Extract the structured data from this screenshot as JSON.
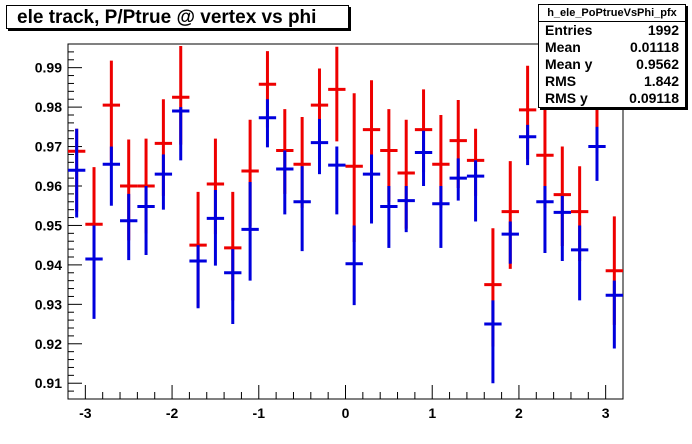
{
  "title": "ele track, P/Ptrue @ vertex vs phi",
  "stats": {
    "name": "h_ele_PoPtrueVsPhi_pfx",
    "rows": [
      {
        "label": "Entries",
        "value": "1992"
      },
      {
        "label": "Mean",
        "value": "0.01118"
      },
      {
        "label": "Mean y",
        "value": "0.9562"
      },
      {
        "label": "RMS",
        "value": "1.842"
      },
      {
        "label": "RMS y",
        "value": "0.09118"
      }
    ]
  },
  "colors": {
    "red": "#ee0000",
    "blue": "#0000dd"
  },
  "chart_data": {
    "type": "scatter",
    "title": "ele track, P/Ptrue @ vertex vs phi",
    "xlim": [
      -3.2,
      3.2
    ],
    "ylim": [
      0.906,
      0.996
    ],
    "xticks": [
      "-3",
      "-2",
      "-1",
      "0",
      "1",
      "2",
      "3"
    ],
    "yticks": [
      "0.91",
      "0.92",
      "0.93",
      "0.94",
      "0.95",
      "0.96",
      "0.97",
      "0.98",
      "0.99"
    ],
    "grid": false,
    "bin_half_width": 0.1,
    "series": [
      {
        "color": "red",
        "points": [
          {
            "x": -3.1,
            "y": 0.9688,
            "lo": 0.9535,
            "hi": 0.9745
          },
          {
            "x": -2.9,
            "y": 0.9503,
            "lo": 0.9318,
            "hi": 0.9648
          },
          {
            "x": -2.7,
            "y": 0.9805,
            "lo": 0.9665,
            "hi": 0.9918
          },
          {
            "x": -2.5,
            "y": 0.96,
            "lo": 0.9462,
            "hi": 0.9718
          },
          {
            "x": -2.3,
            "y": 0.96,
            "lo": 0.948,
            "hi": 0.972
          },
          {
            "x": -2.1,
            "y": 0.9708,
            "lo": 0.9575,
            "hi": 0.982
          },
          {
            "x": -1.9,
            "y": 0.9825,
            "lo": 0.9705,
            "hi": 0.9955
          },
          {
            "x": -1.7,
            "y": 0.945,
            "lo": 0.9293,
            "hi": 0.9585
          },
          {
            "x": -1.5,
            "y": 0.9605,
            "lo": 0.9478,
            "hi": 0.972
          },
          {
            "x": -1.3,
            "y": 0.9443,
            "lo": 0.931,
            "hi": 0.9585
          },
          {
            "x": -1.1,
            "y": 0.9638,
            "lo": 0.9498,
            "hi": 0.9768
          },
          {
            "x": -0.9,
            "y": 0.9858,
            "lo": 0.9748,
            "hi": 0.9942
          },
          {
            "x": -0.7,
            "y": 0.969,
            "lo": 0.958,
            "hi": 0.9795
          },
          {
            "x": -0.5,
            "y": 0.9655,
            "lo": 0.9545,
            "hi": 0.9775
          },
          {
            "x": -0.3,
            "y": 0.9805,
            "lo": 0.9668,
            "hi": 0.9898
          },
          {
            "x": -0.1,
            "y": 0.9845,
            "lo": 0.9713,
            "hi": 0.9953
          },
          {
            "x": 0.1,
            "y": 0.965,
            "lo": 0.9458,
            "hi": 0.9835
          },
          {
            "x": 0.3,
            "y": 0.9743,
            "lo": 0.962,
            "hi": 0.9868
          },
          {
            "x": 0.5,
            "y": 0.969,
            "lo": 0.956,
            "hi": 0.9795
          },
          {
            "x": 0.7,
            "y": 0.9633,
            "lo": 0.9492,
            "hi": 0.9768
          },
          {
            "x": 0.9,
            "y": 0.9743,
            "lo": 0.9635,
            "hi": 0.9845
          },
          {
            "x": 1.1,
            "y": 0.9655,
            "lo": 0.9545,
            "hi": 0.978
          },
          {
            "x": 1.3,
            "y": 0.9715,
            "lo": 0.9595,
            "hi": 0.9818
          },
          {
            "x": 1.5,
            "y": 0.9665,
            "lo": 0.9575,
            "hi": 0.9745
          },
          {
            "x": 1.7,
            "y": 0.935,
            "lo": 0.9193,
            "hi": 0.9493
          },
          {
            "x": 1.9,
            "y": 0.9535,
            "lo": 0.939,
            "hi": 0.9663
          },
          {
            "x": 2.1,
            "y": 0.9793,
            "lo": 0.9668,
            "hi": 0.9905
          },
          {
            "x": 2.3,
            "y": 0.9678,
            "lo": 0.9545,
            "hi": 0.9805
          },
          {
            "x": 2.5,
            "y": 0.9578,
            "lo": 0.9448,
            "hi": 0.97
          },
          {
            "x": 2.7,
            "y": 0.9535,
            "lo": 0.941,
            "hi": 0.965
          },
          {
            "x": 2.9,
            "y": 0.9808,
            "lo": 0.9683,
            "hi": 0.9905
          },
          {
            "x": 3.1,
            "y": 0.9385,
            "lo": 0.9248,
            "hi": 0.9523
          }
        ]
      },
      {
        "color": "blue",
        "points": [
          {
            "x": -3.1,
            "y": 0.964,
            "lo": 0.952,
            "hi": 0.9745
          },
          {
            "x": -2.9,
            "y": 0.9415,
            "lo": 0.9263,
            "hi": 0.95
          },
          {
            "x": -2.7,
            "y": 0.9655,
            "lo": 0.955,
            "hi": 0.97
          },
          {
            "x": -2.5,
            "y": 0.9512,
            "lo": 0.9412,
            "hi": 0.958
          },
          {
            "x": -2.3,
            "y": 0.9548,
            "lo": 0.9425,
            "hi": 0.96
          },
          {
            "x": -2.1,
            "y": 0.963,
            "lo": 0.954,
            "hi": 0.968
          },
          {
            "x": -1.9,
            "y": 0.979,
            "lo": 0.9665,
            "hi": 0.98
          },
          {
            "x": -1.7,
            "y": 0.941,
            "lo": 0.929,
            "hi": 0.945
          },
          {
            "x": -1.5,
            "y": 0.9518,
            "lo": 0.9398,
            "hi": 0.959
          },
          {
            "x": -1.3,
            "y": 0.938,
            "lo": 0.925,
            "hi": 0.944
          },
          {
            "x": -1.1,
            "y": 0.949,
            "lo": 0.936,
            "hi": 0.961
          },
          {
            "x": -0.9,
            "y": 0.9773,
            "lo": 0.9698,
            "hi": 0.982
          },
          {
            "x": -0.7,
            "y": 0.9643,
            "lo": 0.9528,
            "hi": 0.969
          },
          {
            "x": -0.5,
            "y": 0.956,
            "lo": 0.9435,
            "hi": 0.965
          },
          {
            "x": -0.3,
            "y": 0.971,
            "lo": 0.963,
            "hi": 0.977
          },
          {
            "x": -0.1,
            "y": 0.9653,
            "lo": 0.9528,
            "hi": 0.97
          },
          {
            "x": 0.1,
            "y": 0.9403,
            "lo": 0.9298,
            "hi": 0.95
          },
          {
            "x": 0.3,
            "y": 0.963,
            "lo": 0.9505,
            "hi": 0.968
          },
          {
            "x": 0.5,
            "y": 0.9548,
            "lo": 0.9443,
            "hi": 0.96
          },
          {
            "x": 0.7,
            "y": 0.9563,
            "lo": 0.9483,
            "hi": 0.96
          },
          {
            "x": 0.9,
            "y": 0.9685,
            "lo": 0.96,
            "hi": 0.974
          },
          {
            "x": 1.1,
            "y": 0.9555,
            "lo": 0.9443,
            "hi": 0.96
          },
          {
            "x": 1.3,
            "y": 0.962,
            "lo": 0.9563,
            "hi": 0.967
          },
          {
            "x": 1.5,
            "y": 0.9625,
            "lo": 0.951,
            "hi": 0.9665
          },
          {
            "x": 1.7,
            "y": 0.925,
            "lo": 0.91,
            "hi": 0.931
          },
          {
            "x": 1.9,
            "y": 0.9478,
            "lo": 0.9403,
            "hi": 0.951
          },
          {
            "x": 2.1,
            "y": 0.9725,
            "lo": 0.9653,
            "hi": 0.9755
          },
          {
            "x": 2.3,
            "y": 0.956,
            "lo": 0.943,
            "hi": 0.96
          },
          {
            "x": 2.5,
            "y": 0.9533,
            "lo": 0.941,
            "hi": 0.9575
          },
          {
            "x": 2.7,
            "y": 0.9438,
            "lo": 0.931,
            "hi": 0.95
          },
          {
            "x": 2.9,
            "y": 0.97,
            "lo": 0.9613,
            "hi": 0.975
          },
          {
            "x": 3.1,
            "y": 0.9323,
            "lo": 0.9188,
            "hi": 0.936
          }
        ]
      }
    ]
  }
}
